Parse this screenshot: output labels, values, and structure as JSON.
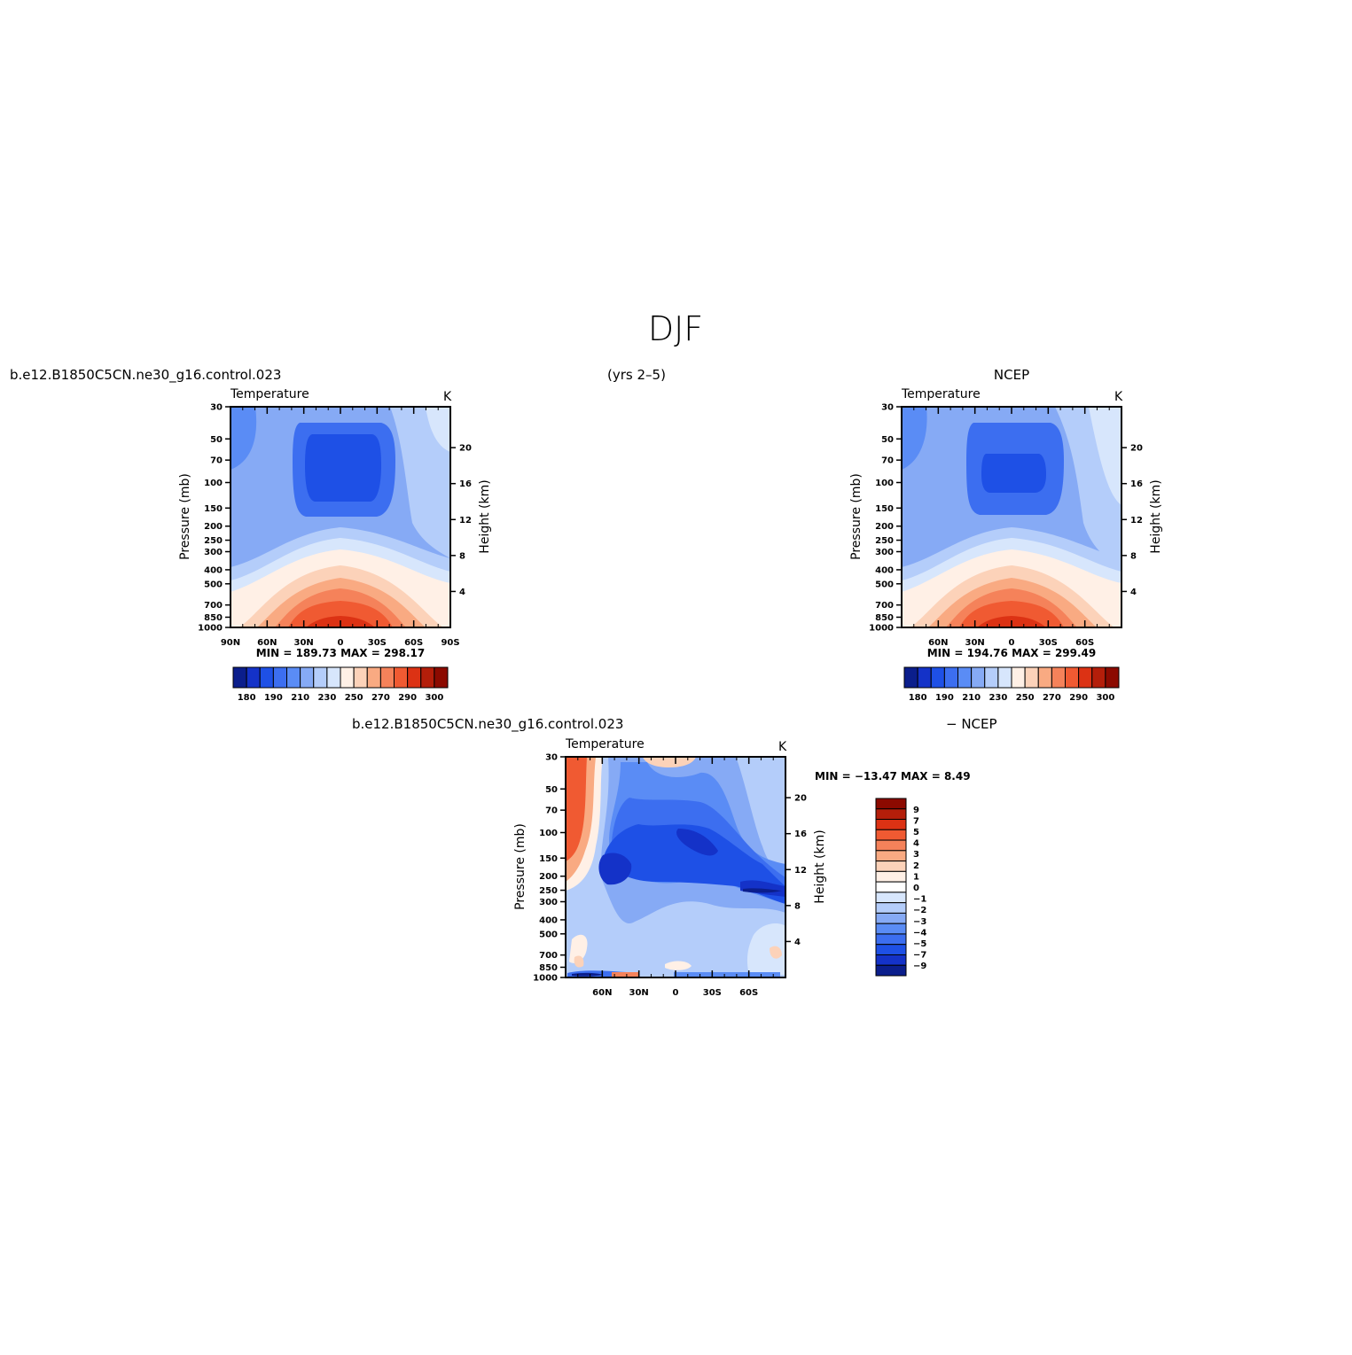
{
  "page": {
    "season_title": "DJF",
    "years": "(yrs 2–5)"
  },
  "panels": {
    "model": {
      "header_left": "b.e12.B1850C5CN.ne30_g16.control.023",
      "variable": "Temperature",
      "units": "K",
      "min_max": "MIN =  189.73   MAX =  298.17"
    },
    "obs": {
      "header_right": "NCEP",
      "variable": "Temperature",
      "units": "K",
      "min_max": "MIN =  194.76   MAX =  299.49"
    },
    "diff": {
      "header_left": "b.e12.B1850C5CN.ne30_g16.control.023",
      "header_right": "− NCEP",
      "variable": "Temperature",
      "units": "K",
      "min_max": "MIN = −13.47   MAX =    8.49"
    }
  },
  "axes": {
    "ylabel_left": "Pressure  (mb)",
    "ylabel_right": "Height  (km)",
    "pressure_ticks": [
      "30",
      "50",
      "70",
      "100",
      "150",
      "200",
      "250",
      "300",
      "400",
      "500",
      "700",
      "850",
      "1000"
    ],
    "height_ticks": [
      "20",
      "16",
      "12",
      "8",
      "4"
    ],
    "lat_ticks_full": [
      "90N",
      "60N",
      "30N",
      "0",
      "30S",
      "60S",
      "90S"
    ],
    "lat_ticks_inner": [
      "60N",
      "30N",
      "0",
      "30S",
      "60S"
    ]
  },
  "colors": {
    "abs_palette": [
      "#0b1e8c",
      "#1432c8",
      "#1e50e6",
      "#3c6ef0",
      "#5a8cf5",
      "#86aaf5",
      "#b4cdfa",
      "#d7e6fc",
      "#fff0e6",
      "#fcd2b9",
      "#f9aa82",
      "#f5825a",
      "#f05a32",
      "#dc3214",
      "#b41e0a",
      "#8c0a00"
    ],
    "diff_palette": [
      "#8c0a00",
      "#b41e0a",
      "#dc3214",
      "#f05a32",
      "#f5825a",
      "#f9aa82",
      "#fcd2b9",
      "#fff0e6",
      "#ffffff",
      "#d7e6fc",
      "#b4cdfa",
      "#86aaf5",
      "#5a8cf5",
      "#3c6ef0",
      "#1e50e6",
      "#1432c8",
      "#0b1e8c"
    ]
  },
  "colorbars": {
    "abs_labels": [
      "180",
      "190",
      "210",
      "230",
      "250",
      "270",
      "290",
      "300"
    ],
    "diff_labels": [
      "9",
      "7",
      "5",
      "4",
      "3",
      "2",
      "1",
      "0",
      "−1",
      "−2",
      "−3",
      "−4",
      "−5",
      "−7",
      "−9"
    ]
  },
  "chart_data": [
    {
      "type": "heatmap",
      "name": "model",
      "title": "Temperature",
      "x": [
        "90N",
        "60N",
        "30N",
        "0",
        "30S",
        "60S",
        "90S"
      ],
      "y_pressure_mb": [
        30,
        50,
        70,
        100,
        150,
        200,
        250,
        300,
        400,
        500,
        700,
        850,
        1000
      ],
      "units": "K",
      "min": 189.73,
      "max": 298.17,
      "contour_levels": [
        180,
        185,
        190,
        200,
        210,
        220,
        230,
        240,
        250,
        260,
        270,
        280,
        290,
        295,
        300
      ],
      "xlabel": "",
      "ylabel": "Pressure  (mb)",
      "ylabel_right": "Height  (km)"
    },
    {
      "type": "heatmap",
      "name": "obs",
      "title": "Temperature",
      "x": [
        "60N",
        "30N",
        "0",
        "30S",
        "60S"
      ],
      "y_pressure_mb": [
        30,
        50,
        70,
        100,
        150,
        200,
        250,
        300,
        400,
        500,
        700,
        850,
        1000
      ],
      "units": "K",
      "min": 194.76,
      "max": 299.49,
      "contour_levels": [
        180,
        185,
        190,
        200,
        210,
        220,
        230,
        240,
        250,
        260,
        270,
        280,
        290,
        295,
        300
      ],
      "xlabel": "",
      "ylabel": "Pressure  (mb)",
      "ylabel_right": "Height  (km)"
    },
    {
      "type": "heatmap",
      "name": "diff",
      "title": "Temperature",
      "x": [
        "60N",
        "30N",
        "0",
        "30S",
        "60S"
      ],
      "y_pressure_mb": [
        30,
        50,
        70,
        100,
        150,
        200,
        250,
        300,
        400,
        500,
        700,
        850,
        1000
      ],
      "units": "K",
      "min": -13.47,
      "max": 8.49,
      "contour_levels": [
        -9,
        -7,
        -5,
        -4,
        -3,
        -2,
        -1,
        0,
        1,
        2,
        3,
        4,
        5,
        7,
        9
      ],
      "xlabel": "",
      "ylabel": "Pressure  (mb)",
      "ylabel_right": "Height  (km)"
    }
  ]
}
